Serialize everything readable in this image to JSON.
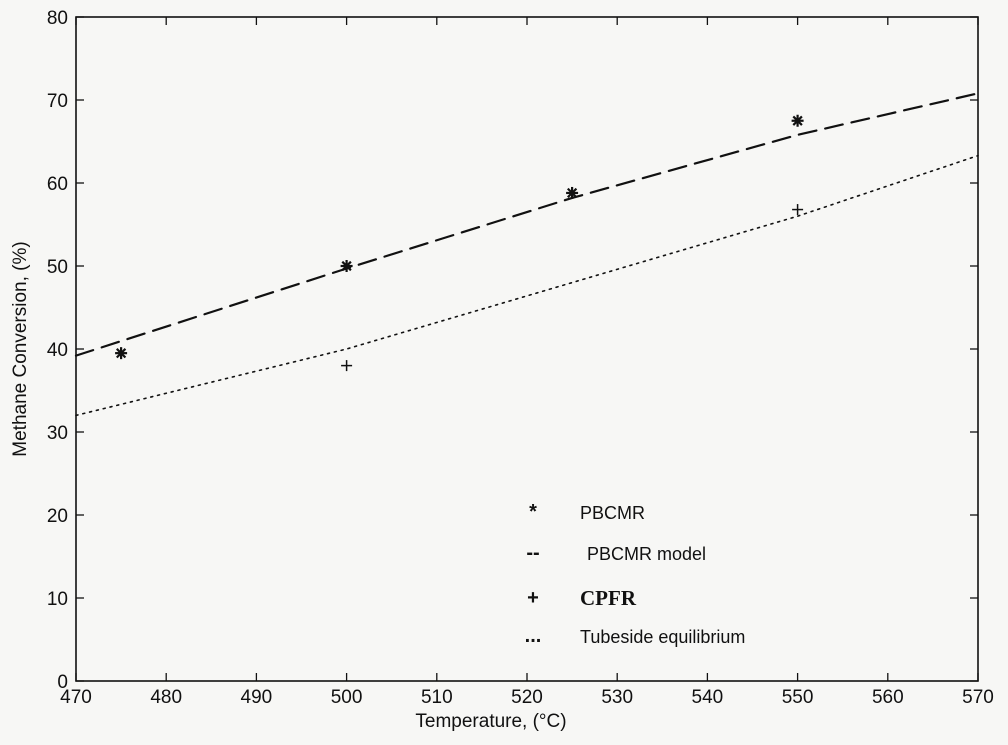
{
  "chart_data": {
    "type": "line",
    "title": "",
    "xlabel": "Temperature, (°C)",
    "ylabel": "Methane Conversion, (%)",
    "xlim": [
      470,
      570
    ],
    "ylim": [
      0,
      80
    ],
    "xticks": [
      470,
      480,
      490,
      500,
      510,
      520,
      530,
      540,
      550,
      560,
      570
    ],
    "yticks": [
      0,
      10,
      20,
      30,
      40,
      50,
      60,
      70,
      80
    ],
    "grid": false,
    "legend_position": "bottom-center",
    "series": [
      {
        "name": "PBCMR",
        "style": "marker",
        "marker": "asterisk",
        "x": [
          475,
          500,
          525,
          550
        ],
        "y": [
          39.5,
          50,
          58.8,
          67.5
        ],
        "color": "#111111"
      },
      {
        "name": "PBCMR model",
        "style": "dashed",
        "marker": "none",
        "x": [
          470,
          500,
          525,
          550,
          570
        ],
        "y": [
          39.2,
          49.7,
          58.2,
          65.8,
          70.8
        ],
        "color": "#111111"
      },
      {
        "name": "CPFR",
        "style": "marker",
        "marker": "plus",
        "x": [
          500,
          550
        ],
        "y": [
          38,
          56.8
        ],
        "color": "#111111"
      },
      {
        "name": "Tubeside equilibrium",
        "style": "dotted",
        "marker": "none",
        "x": [
          470,
          500,
          525,
          550,
          570
        ],
        "y": [
          32,
          40,
          48,
          56,
          63.3
        ],
        "color": "#111111"
      }
    ],
    "legend": [
      {
        "symbol": "*",
        "label": "PBCMR"
      },
      {
        "symbol": "--",
        "label": "PBCMR model"
      },
      {
        "symbol": "+",
        "label": "CPFR"
      },
      {
        "symbol": "...",
        "label": "Tubeside equilibrium"
      }
    ]
  }
}
